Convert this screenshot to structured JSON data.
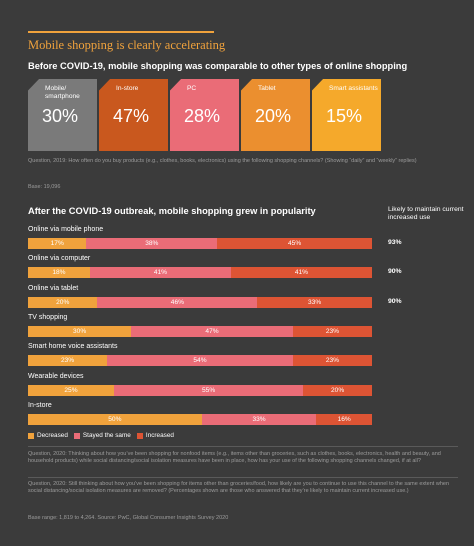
{
  "title": "Mobile shopping is clearly accelerating",
  "section1": {
    "heading": "Before COVID-19, mobile shopping was comparable to other types of online shopping",
    "tiles": [
      {
        "label": "Mobile/ smartphone",
        "value": "30%",
        "color": "#7a7a7a"
      },
      {
        "label": "In-store",
        "value": "47%",
        "color": "#c9581e"
      },
      {
        "label": "PC",
        "value": "28%",
        "color": "#ea6c77"
      },
      {
        "label": "Tablet",
        "value": "20%",
        "color": "#eb8f2f"
      },
      {
        "label": "Smart assistants",
        "value": "15%",
        "color": "#f5a92b"
      }
    ],
    "question": "Question, 2019: How often do you buy products (e.g., clothes, books, electronics) using the following shopping channels? (Showing “daily” and “weekly” replies)",
    "base": "Base: 19,096"
  },
  "section2": {
    "heading": "After the COVID-19 outbreak, mobile shopping grew in popularity",
    "likely_heading": "Likely to maintain current increased use"
  },
  "colors": {
    "decreased": "#f0a23c",
    "same": "#ea6c77",
    "increased": "#dd5434",
    "title": "#f0a23c"
  },
  "chart_data": {
    "type": "bar",
    "stacked": true,
    "orientation": "horizontal",
    "categories": [
      "Online via mobile phone",
      "Online via computer",
      "Online via tablet",
      "TV shopping",
      "Smart home voice assistants",
      "Wearable devices",
      "In-store"
    ],
    "series": [
      {
        "name": "Decreased",
        "values": [
          17,
          18,
          20,
          30,
          23,
          25,
          50
        ]
      },
      {
        "name": "Stayed the same",
        "values": [
          38,
          41,
          46,
          47,
          54,
          55,
          33
        ]
      },
      {
        "name": "Increased",
        "values": [
          45,
          41,
          33,
          23,
          23,
          20,
          16
        ]
      }
    ],
    "labels": [
      [
        "17%",
        "38%",
        "45%"
      ],
      [
        "18%",
        "41%",
        "41%"
      ],
      [
        "20%",
        "46%",
        "33%"
      ],
      [
        "30%",
        "47%",
        "23%"
      ],
      [
        "23%",
        "54%",
        "23%"
      ],
      [
        "25%",
        "55%",
        "20%"
      ],
      [
        "50%",
        "33%",
        "16%"
      ]
    ],
    "likely_to_maintain": [
      "93%",
      "90%",
      "90%",
      "",
      "",
      "",
      ""
    ],
    "legend": [
      "Decreased",
      "Stayed the same",
      "Increased"
    ],
    "legend_position": "bottom-left"
  },
  "footer": {
    "q1": "Question, 2020: Thinking about how you’ve been shopping for nonfood items (e.g., items other than groceries, such as clothes, books, electronics, health and beauty, and household products) while social distancing/social isolation measures have been in place, how has your use of the following shopping channels changed, if at all?",
    "q2": "Question, 2020: Still thinking about how you’ve been shopping for items other than groceries/food, how likely are you to continue to use this channel to the same extent when social distancing/social isolation measures are removed? (Percentages shown are those who answered that they’re likely to maintain current increased use.)",
    "base": "Base range: 1,819 to 4,264. Source: PwC, Global Consumer Insights Survey 2020"
  }
}
